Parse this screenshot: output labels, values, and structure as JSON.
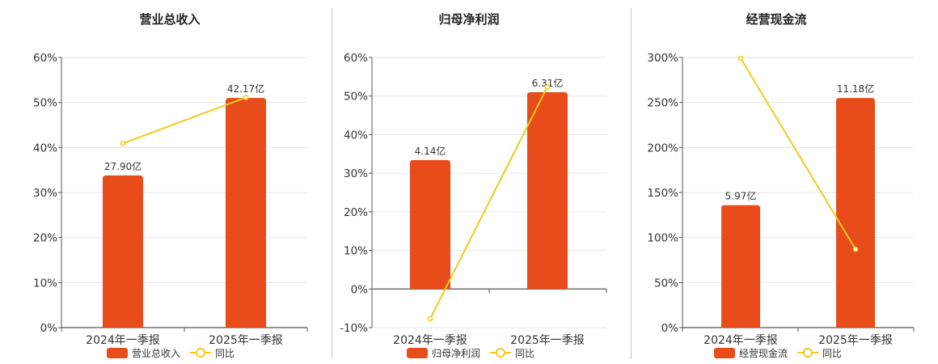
{
  "colors": {
    "bar": "#E84C1A",
    "line": "#F0CB1E",
    "grid": "#e6e6e6",
    "axis": "#555555",
    "text": "#333333",
    "title": "#222222"
  },
  "chart_data": [
    {
      "type": "bar",
      "title": "营业总收入",
      "categories": [
        "2024年一季报",
        "2025年一季报"
      ],
      "y_ticks": [
        "0%",
        "10%",
        "20%",
        "30%",
        "40%",
        "50%",
        "60%"
      ],
      "ylim": [
        0,
        60
      ],
      "grid": true,
      "legend_position": "bottom",
      "series": [
        {
          "name": "营业总收入",
          "kind": "bar",
          "values": [
            33.8,
            51.0
          ],
          "labels": [
            "27.90亿",
            "42.17亿"
          ]
        },
        {
          "name": "同比",
          "kind": "line",
          "values": [
            40.9,
            51.1
          ]
        }
      ]
    },
    {
      "type": "bar",
      "title": "归母净利润",
      "categories": [
        "2024年一季报",
        "2025年一季报"
      ],
      "y_ticks": [
        "-10%",
        "0%",
        "10%",
        "20%",
        "30%",
        "40%",
        "50%",
        "60%"
      ],
      "ylim": [
        -10,
        60
      ],
      "grid": true,
      "legend_position": "bottom",
      "series": [
        {
          "name": "归母净利润",
          "kind": "bar",
          "values": [
            33.4,
            51.0
          ],
          "labels": [
            "4.14亿",
            "6.31亿"
          ]
        },
        {
          "name": "同比",
          "kind": "line",
          "values": [
            -7.7,
            52.4
          ]
        }
      ]
    },
    {
      "type": "bar",
      "title": "经营现金流",
      "categories": [
        "2024年一季报",
        "2025年一季报"
      ],
      "y_ticks": [
        "0%",
        "50%",
        "100%",
        "150%",
        "200%",
        "250%",
        "300%"
      ],
      "ylim": [
        0,
        300
      ],
      "grid": true,
      "legend_position": "bottom",
      "series": [
        {
          "name": "经营现金流",
          "kind": "bar",
          "values": [
            136,
            255
          ],
          "labels": [
            "5.97亿",
            "11.18亿"
          ]
        },
        {
          "name": "同比",
          "kind": "line",
          "values": [
            299,
            87
          ]
        }
      ]
    }
  ]
}
